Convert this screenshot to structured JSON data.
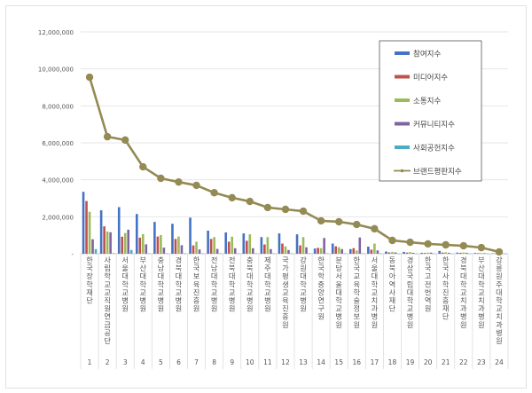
{
  "chart_data": {
    "type": "bar",
    "title": "",
    "xlabel": "",
    "ylabel": "",
    "ylim": [
      0,
      12000000
    ],
    "yticks": [
      "-",
      "2,000,000",
      "4,000,000",
      "6,000,000",
      "8,000,000",
      "10,000,000",
      "12,000,000"
    ],
    "grid": true,
    "legend_position": "right-top inside",
    "ranks": [
      "1",
      "2",
      "3",
      "4",
      "5",
      "6",
      "7",
      "8",
      "9",
      "10",
      "11",
      "12",
      "13",
      "14",
      "15",
      "16",
      "17",
      "18",
      "19",
      "20",
      "21",
      "22",
      "23",
      "24"
    ],
    "categories": [
      "한국장학재단",
      "사립학교교직원연금공단",
      "서울대학교병원",
      "부산대학교병원",
      "충남대학교병원",
      "경북대학교병원",
      "한국보육진흥원",
      "전남대학교병원",
      "전북대학교병원",
      "충북대학교병원",
      "제주대학교병원",
      "국가평생교육진흥원",
      "강원대학교병원",
      "한국학중앙연구원",
      "분당서울대학교병원",
      "한국교육학술정보원",
      "서울대학교치과병원",
      "동북아역사재단",
      "경상국립대학교병원",
      "한국고전번역원",
      "한국사학진흥재단",
      "경북대학교치과병원",
      "부산대학교치과병원",
      "강릉원주대학교치과병원"
    ],
    "series": [
      {
        "name": "참여지수",
        "kind": "bar",
        "color": "#4472c4",
        "values": [
          3350000,
          2350000,
          2520000,
          2150000,
          1720000,
          1620000,
          1950000,
          1250000,
          1150000,
          1100000,
          900000,
          1100000,
          1050000,
          280000,
          550000,
          250000,
          380000,
          120000,
          100000,
          50000,
          150000,
          60000,
          40000,
          20000
        ]
      },
      {
        "name": "미디어지수",
        "kind": "bar",
        "color": "#c0504d",
        "values": [
          2850000,
          1480000,
          920000,
          870000,
          930000,
          800000,
          450000,
          800000,
          650000,
          700000,
          500000,
          550000,
          450000,
          320000,
          400000,
          300000,
          220000,
          70000,
          60000,
          40000,
          60000,
          50000,
          30000,
          15000
        ]
      },
      {
        "name": "소통지수",
        "kind": "bar",
        "color": "#9bbb59",
        "values": [
          2270000,
          1200000,
          1120000,
          1060000,
          1010000,
          930000,
          650000,
          900000,
          920000,
          1050000,
          900000,
          400000,
          900000,
          300000,
          350000,
          170000,
          550000,
          100000,
          90000,
          60000,
          80000,
          70000,
          40000,
          20000
        ]
      },
      {
        "name": "커뮤니티지수",
        "kind": "bar",
        "color": "#8064a2",
        "values": [
          780000,
          1160000,
          1300000,
          510000,
          330000,
          460000,
          230000,
          260000,
          300000,
          300000,
          250000,
          200000,
          350000,
          850000,
          250000,
          880000,
          180000,
          70000,
          50000,
          60000,
          50000,
          50000,
          30000,
          10000
        ]
      },
      {
        "name": "사회공헌지수",
        "kind": "bar",
        "color": "#4bacc6",
        "values": [
          250000,
          30000,
          200000,
          20000,
          20000,
          20000,
          20000,
          20000,
          20000,
          20000,
          20000,
          20000,
          20000,
          20000,
          20000,
          20000,
          20000,
          10000,
          10000,
          10000,
          10000,
          10000,
          10000,
          5000
        ]
      },
      {
        "name": "브랜드평판지수",
        "kind": "line",
        "color": "#948a54",
        "values": [
          9550000,
          6330000,
          6150000,
          4700000,
          4080000,
          3880000,
          3700000,
          3300000,
          3030000,
          2830000,
          2500000,
          2400000,
          2300000,
          1780000,
          1730000,
          1580000,
          1350000,
          720000,
          620000,
          530000,
          480000,
          430000,
          330000,
          100000
        ]
      }
    ]
  }
}
